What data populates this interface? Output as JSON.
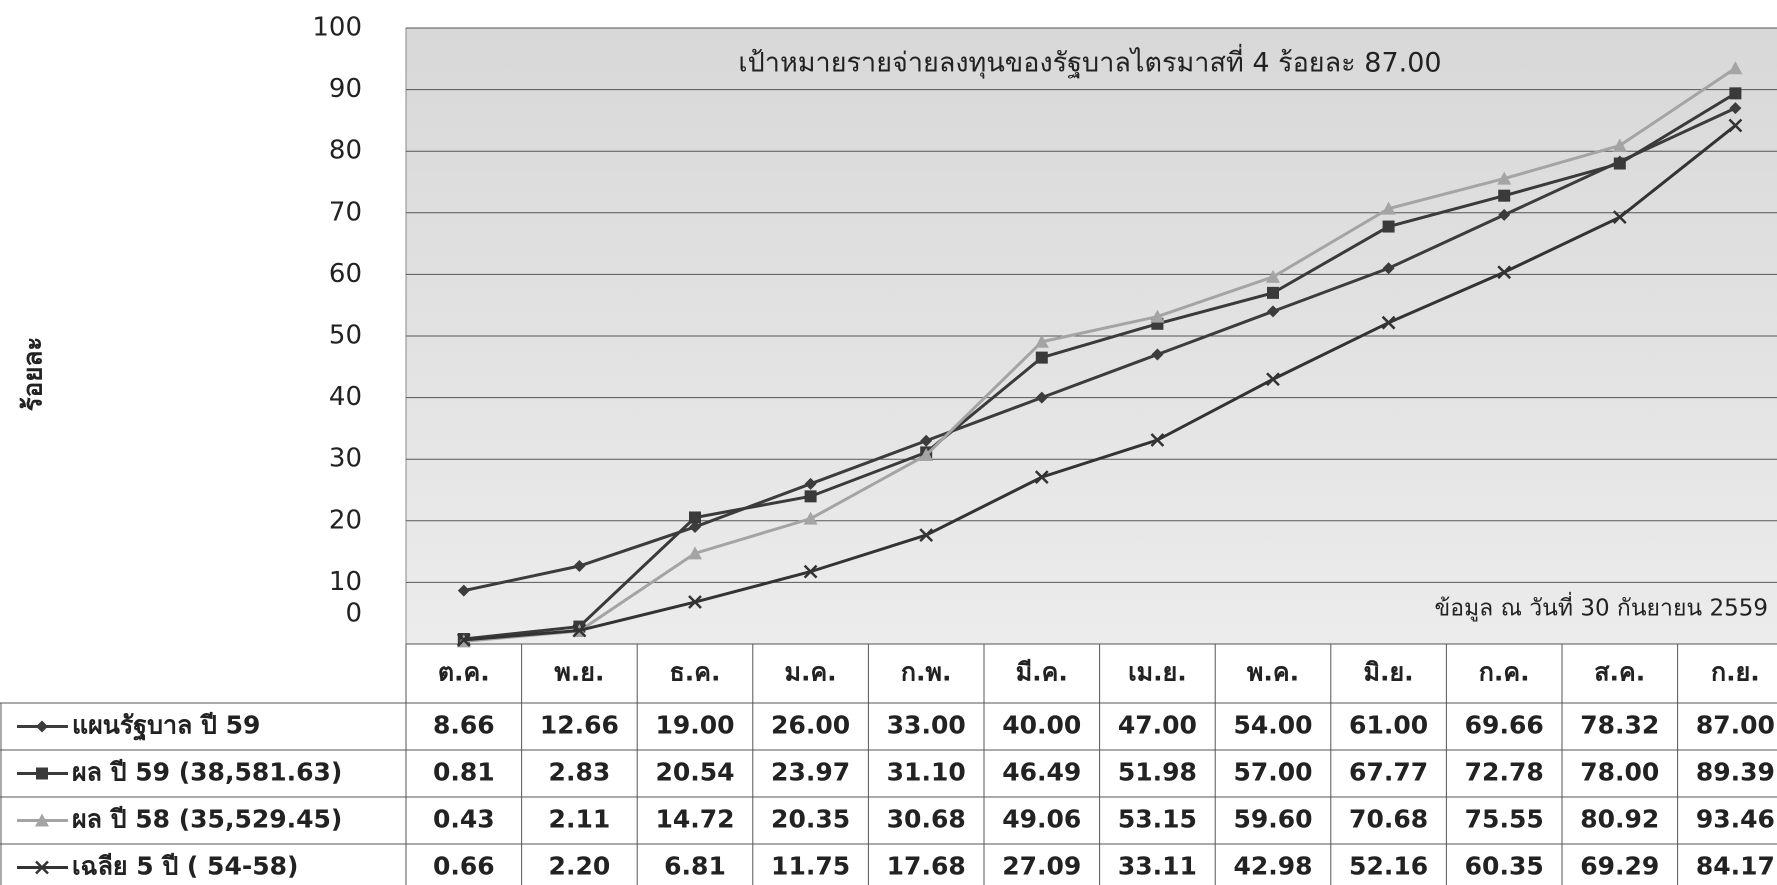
{
  "chart_data": {
    "type": "line",
    "title": "เป้าหมายรายจ่ายลงทุนของรัฐบาลไตรมาสที่  4 ร้อยละ  87.00",
    "annotation": "ข้อมูล ณ วันที่ 30 กันยายน 2559",
    "y_label": "ร้อยละ",
    "categories": [
      "ต.ค.",
      "พ.ย.",
      "ธ.ค.",
      "ม.ค.",
      "ก.พ.",
      "มี.ค.",
      "เม.ย.",
      "พ.ค.",
      "มิ.ย.",
      "ก.ค.",
      "ส.ค.",
      "ก.ย."
    ],
    "ylim": [
      0,
      100
    ],
    "yticks": [
      0,
      10,
      20,
      30,
      40,
      50,
      60,
      70,
      80,
      90,
      100
    ],
    "grid": true,
    "series": [
      {
        "name": "แผนรัฐบาล ปี 59",
        "color": "#3c3c3c",
        "marker": "diamond",
        "values": [
          8.66,
          12.66,
          19,
          26,
          33,
          40,
          47,
          54,
          61,
          69.66,
          78.32,
          87
        ],
        "value_labels": [
          "8.66",
          "12.66",
          "19.00",
          "26.00",
          "33.00",
          "40.00",
          "47.00",
          "54.00",
          "61.00",
          "69.66",
          "78.32",
          "87.00"
        ]
      },
      {
        "name": "ผล ปี 59 (38,581.63)",
        "color": "#3a3a3a",
        "marker": "square",
        "values": [
          0.81,
          2.83,
          20.54,
          23.97,
          31.1,
          46.49,
          51.98,
          57,
          67.77,
          72.78,
          78,
          89.39
        ],
        "value_labels": [
          "0.81",
          "2.83",
          "20.54",
          "23.97",
          "31.10",
          "46.49",
          "51.98",
          "57.00",
          "67.77",
          "72.78",
          "78.00",
          "89.39"
        ]
      },
      {
        "name": "ผล ปี 58 (35,529.45)",
        "color": "#a4a4a4",
        "marker": "triangle",
        "values": [
          0.43,
          2.11,
          14.72,
          20.35,
          30.68,
          49.06,
          53.15,
          59.6,
          70.68,
          75.55,
          80.92,
          93.46
        ],
        "value_labels": [
          "0.43",
          "2.11",
          "14.72",
          "20.35",
          "30.68",
          "49.06",
          "53.15",
          "59.60",
          "70.68",
          "75.55",
          "80.92",
          "93.46"
        ]
      },
      {
        "name": "เฉลีย 5  ปี  ( 54-58)",
        "color": "#333333",
        "marker": "x",
        "values": [
          0.66,
          2.2,
          6.81,
          11.75,
          17.68,
          27.09,
          33.11,
          42.98,
          52.16,
          60.35,
          69.29,
          84.17
        ],
        "value_labels": [
          "0.66",
          "2.20",
          "6.81",
          "11.75",
          "17.68",
          "27.09",
          "33.11",
          "42.98",
          "52.16",
          "60.35",
          "69.29",
          "84.17"
        ]
      }
    ]
  }
}
